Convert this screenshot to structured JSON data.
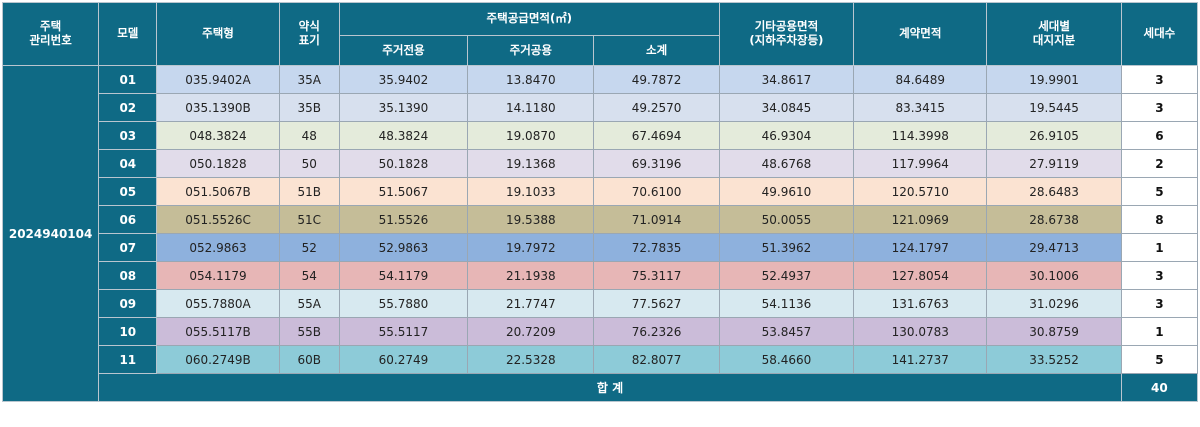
{
  "header": {
    "mgmt_no": "주택\n관리번호",
    "model": "모델",
    "type": "주택형",
    "abbr": "약식\n표기",
    "supply_area": "주택공급면적(㎡)",
    "residential_exclusive": "주거전용",
    "residential_common": "주거공용",
    "subtotal": "소계",
    "other_common": "기타공용면적\n(지하주차장등)",
    "contract_area": "계약면적",
    "land_share": "세대별\n대지지분",
    "households": "세대수"
  },
  "mgmt_number": "2024940104",
  "rows": [
    {
      "model": "01",
      "type": "035.9402A",
      "abbr": "35A",
      "excl": "35.9402",
      "comm": "13.8470",
      "sub": "49.7872",
      "other": "34.8617",
      "contract": "84.6489",
      "land": "19.9901",
      "count": "3",
      "color": "#c6d7ee"
    },
    {
      "model": "02",
      "type": "035.1390B",
      "abbr": "35B",
      "excl": "35.1390",
      "comm": "14.1180",
      "sub": "49.2570",
      "other": "34.0845",
      "contract": "83.3415",
      "land": "19.5445",
      "count": "3",
      "color": "#d7e0ee"
    },
    {
      "model": "03",
      "type": "048.3824",
      "abbr": "48",
      "excl": "48.3824",
      "comm": "19.0870",
      "sub": "67.4694",
      "other": "46.9304",
      "contract": "114.3998",
      "land": "26.9105",
      "count": "6",
      "color": "#e4ebdb"
    },
    {
      "model": "04",
      "type": "050.1828",
      "abbr": "50",
      "excl": "50.1828",
      "comm": "19.1368",
      "sub": "69.3196",
      "other": "48.6768",
      "contract": "117.9964",
      "land": "27.9119",
      "count": "2",
      "color": "#e1dcea"
    },
    {
      "model": "05",
      "type": "051.5067B",
      "abbr": "51B",
      "excl": "51.5067",
      "comm": "19.1033",
      "sub": "70.6100",
      "other": "49.9610",
      "contract": "120.5710",
      "land": "28.6483",
      "count": "5",
      "color": "#fbe3d2"
    },
    {
      "model": "06",
      "type": "051.5526C",
      "abbr": "51C",
      "excl": "51.5526",
      "comm": "19.5388",
      "sub": "71.0914",
      "other": "50.0055",
      "contract": "121.0969",
      "land": "28.6738",
      "count": "8",
      "color": "#c5bd98"
    },
    {
      "model": "07",
      "type": "052.9863",
      "abbr": "52",
      "excl": "52.9863",
      "comm": "19.7972",
      "sub": "72.7835",
      "other": "51.3962",
      "contract": "124.1797",
      "land": "29.4713",
      "count": "1",
      "color": "#8eb1dd"
    },
    {
      "model": "08",
      "type": "054.1179",
      "abbr": "54",
      "excl": "54.1179",
      "comm": "21.1938",
      "sub": "75.3117",
      "other": "52.4937",
      "contract": "127.8054",
      "land": "30.1006",
      "count": "3",
      "color": "#e7b6b6"
    },
    {
      "model": "09",
      "type": "055.7880A",
      "abbr": "55A",
      "excl": "55.7880",
      "comm": "21.7747",
      "sub": "77.5627",
      "other": "54.1136",
      "contract": "131.6763",
      "land": "31.0296",
      "count": "3",
      "color": "#d7e9f0"
    },
    {
      "model": "10",
      "type": "055.5117B",
      "abbr": "55B",
      "excl": "55.5117",
      "comm": "20.7209",
      "sub": "76.2326",
      "other": "53.8457",
      "contract": "130.0783",
      "land": "30.8759",
      "count": "1",
      "color": "#cbbcd9"
    },
    {
      "model": "11",
      "type": "060.2749B",
      "abbr": "60B",
      "excl": "60.2749",
      "comm": "22.5328",
      "sub": "82.8077",
      "other": "58.4660",
      "contract": "141.2737",
      "land": "33.5252",
      "count": "5",
      "color": "#8dcbd8"
    }
  ],
  "total": {
    "label": "합 계",
    "count": "40"
  }
}
